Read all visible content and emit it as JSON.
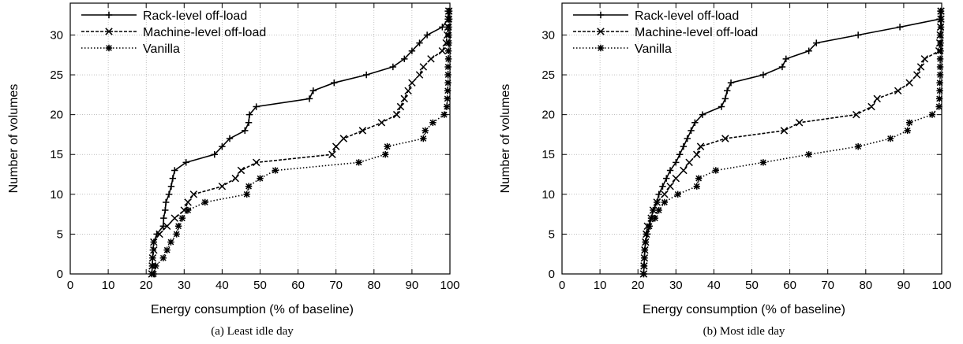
{
  "chart_data": [
    {
      "type": "line",
      "caption": "(a) Least idle day",
      "xlabel": "Energy consumption (% of baseline)",
      "ylabel": "Number of volumes",
      "xlim": [
        0,
        100
      ],
      "ylim": [
        0,
        34
      ],
      "xticks": [
        0,
        10,
        20,
        30,
        40,
        50,
        60,
        70,
        80,
        90,
        100
      ],
      "yticks": [
        0,
        5,
        10,
        15,
        20,
        25,
        30
      ],
      "grid": true,
      "legend_position": "top-left",
      "series": [
        {
          "name": "Rack-level off-load",
          "marker": "plus",
          "dash": "solid",
          "points": [
            [
              21.5,
              0
            ],
            [
              21.6,
              1
            ],
            [
              21.7,
              2
            ],
            [
              21.8,
              3
            ],
            [
              22,
              4
            ],
            [
              22.8,
              5
            ],
            [
              24.5,
              6
            ],
            [
              24.6,
              7
            ],
            [
              25,
              8
            ],
            [
              25.2,
              9
            ],
            [
              26,
              10
            ],
            [
              26.6,
              11
            ],
            [
              27,
              12
            ],
            [
              27.5,
              13
            ],
            [
              30.5,
              14
            ],
            [
              38,
              15
            ],
            [
              40,
              16
            ],
            [
              42,
              17
            ],
            [
              46,
              18
            ],
            [
              47,
              19
            ],
            [
              47.2,
              20
            ],
            [
              49,
              21
            ],
            [
              63,
              22
            ],
            [
              64,
              23
            ],
            [
              69.5,
              24
            ],
            [
              78,
              25
            ],
            [
              85,
              26
            ],
            [
              88,
              27
            ],
            [
              90,
              28
            ],
            [
              92,
              29
            ],
            [
              94,
              30
            ],
            [
              98,
              31
            ],
            [
              99.5,
              32
            ],
            [
              99.5,
              33
            ]
          ]
        },
        {
          "name": "Machine-level off-load",
          "marker": "x",
          "dash": "dashed",
          "points": [
            [
              21.5,
              0
            ],
            [
              21.6,
              1
            ],
            [
              21.7,
              2
            ],
            [
              22,
              3
            ],
            [
              22,
              4
            ],
            [
              23.5,
              5
            ],
            [
              25.5,
              6
            ],
            [
              27.5,
              7
            ],
            [
              30,
              8
            ],
            [
              31,
              9
            ],
            [
              32.5,
              10
            ],
            [
              40,
              11
            ],
            [
              43.5,
              12
            ],
            [
              45,
              13
            ],
            [
              49,
              14
            ],
            [
              69,
              15
            ],
            [
              70,
              16
            ],
            [
              72,
              17
            ],
            [
              77,
              18
            ],
            [
              82,
              19
            ],
            [
              86,
              20
            ],
            [
              87,
              21
            ],
            [
              88,
              22
            ],
            [
              89,
              23
            ],
            [
              90,
              24
            ],
            [
              92,
              25
            ],
            [
              93,
              26
            ],
            [
              95,
              27
            ],
            [
              98,
              28
            ],
            [
              99,
              29
            ],
            [
              99.3,
              30
            ],
            [
              99.5,
              31
            ],
            [
              99.6,
              32
            ],
            [
              99.7,
              33
            ]
          ]
        },
        {
          "name": "Vanilla",
          "marker": "star",
          "dash": "dotted",
          "points": [
            [
              22,
              0
            ],
            [
              22.5,
              1
            ],
            [
              24.5,
              2
            ],
            [
              25.5,
              3
            ],
            [
              26.5,
              4
            ],
            [
              28,
              5
            ],
            [
              28.5,
              6
            ],
            [
              29.5,
              7
            ],
            [
              31,
              8
            ],
            [
              35.5,
              9
            ],
            [
              46.5,
              10
            ],
            [
              47,
              11
            ],
            [
              50,
              12
            ],
            [
              54,
              13
            ],
            [
              76,
              14
            ],
            [
              83,
              15
            ],
            [
              83.5,
              16
            ],
            [
              93,
              17
            ],
            [
              93.5,
              18
            ],
            [
              95.5,
              19
            ],
            [
              98.5,
              20
            ],
            [
              99.2,
              21
            ],
            [
              99.3,
              22
            ],
            [
              99.4,
              23
            ],
            [
              99.5,
              24
            ],
            [
              99.5,
              25
            ],
            [
              99.5,
              26
            ],
            [
              99.6,
              27
            ],
            [
              99.6,
              28
            ],
            [
              99.7,
              29
            ],
            [
              99.7,
              30
            ],
            [
              99.7,
              31
            ],
            [
              99.8,
              32
            ],
            [
              99.8,
              33
            ]
          ]
        }
      ]
    },
    {
      "type": "line",
      "caption": "(b) Most idle day",
      "xlabel": "Energy consumption (% of baseline)",
      "ylabel": "Number of volumes",
      "xlim": [
        0,
        100
      ],
      "ylim": [
        0,
        34
      ],
      "xticks": [
        0,
        10,
        20,
        30,
        40,
        50,
        60,
        70,
        80,
        90,
        100
      ],
      "yticks": [
        0,
        5,
        10,
        15,
        20,
        25,
        30
      ],
      "grid": true,
      "legend_position": "top-left",
      "series": [
        {
          "name": "Rack-level off-load",
          "marker": "plus",
          "dash": "solid",
          "points": [
            [
              21.5,
              0
            ],
            [
              21.6,
              1
            ],
            [
              21.7,
              2
            ],
            [
              21.8,
              3
            ],
            [
              22,
              4
            ],
            [
              22.5,
              5
            ],
            [
              23,
              6
            ],
            [
              23.5,
              7
            ],
            [
              24,
              8
            ],
            [
              25,
              9
            ],
            [
              25.5,
              10
            ],
            [
              26.5,
              11
            ],
            [
              27.5,
              12
            ],
            [
              28.5,
              13
            ],
            [
              30,
              14
            ],
            [
              31,
              15
            ],
            [
              32,
              16
            ],
            [
              33,
              17
            ],
            [
              34,
              18
            ],
            [
              35,
              19
            ],
            [
              37,
              20
            ],
            [
              42,
              21
            ],
            [
              43,
              22
            ],
            [
              43.5,
              23
            ],
            [
              44.5,
              24
            ],
            [
              53,
              25
            ],
            [
              58,
              26
            ],
            [
              59,
              27
            ],
            [
              65,
              28
            ],
            [
              67,
              29
            ],
            [
              78,
              30
            ],
            [
              89,
              31
            ],
            [
              99.5,
              32
            ],
            [
              99.7,
              33
            ]
          ]
        },
        {
          "name": "Machine-level off-load",
          "marker": "x",
          "dash": "dashed",
          "points": [
            [
              21.5,
              0
            ],
            [
              21.6,
              1
            ],
            [
              21.7,
              2
            ],
            [
              21.8,
              3
            ],
            [
              22,
              4
            ],
            [
              22.2,
              5
            ],
            [
              22.5,
              6
            ],
            [
              23.5,
              7
            ],
            [
              24,
              8
            ],
            [
              25,
              9
            ],
            [
              27,
              10
            ],
            [
              28.5,
              11
            ],
            [
              30,
              12
            ],
            [
              32,
              13
            ],
            [
              33.5,
              14
            ],
            [
              35.5,
              15
            ],
            [
              36.5,
              16
            ],
            [
              43,
              17
            ],
            [
              58.5,
              18
            ],
            [
              62.5,
              19
            ],
            [
              77.5,
              20
            ],
            [
              81.5,
              21
            ],
            [
              83,
              22
            ],
            [
              88.5,
              23
            ],
            [
              91.5,
              24
            ],
            [
              93.5,
              25
            ],
            [
              94.5,
              26
            ],
            [
              95.5,
              27
            ],
            [
              99.3,
              28
            ],
            [
              99.5,
              29
            ],
            [
              99.6,
              30
            ],
            [
              99.7,
              31
            ],
            [
              99.8,
              32
            ],
            [
              99.8,
              33
            ]
          ]
        },
        {
          "name": "Vanilla",
          "marker": "star",
          "dash": "dotted",
          "points": [
            [
              21.5,
              0
            ],
            [
              21.6,
              1
            ],
            [
              21.7,
              2
            ],
            [
              21.8,
              3
            ],
            [
              22,
              4
            ],
            [
              22.2,
              5
            ],
            [
              23,
              6
            ],
            [
              24.5,
              7
            ],
            [
              25.5,
              8
            ],
            [
              27,
              9
            ],
            [
              30.5,
              10
            ],
            [
              35.5,
              11
            ],
            [
              36,
              12
            ],
            [
              40.5,
              13
            ],
            [
              53,
              14
            ],
            [
              65,
              15
            ],
            [
              78,
              16
            ],
            [
              86.5,
              17
            ],
            [
              91,
              18
            ],
            [
              91.5,
              19
            ],
            [
              97.5,
              20
            ],
            [
              99.3,
              21
            ],
            [
              99.4,
              22
            ],
            [
              99.5,
              23
            ],
            [
              99.5,
              24
            ],
            [
              99.6,
              25
            ],
            [
              99.6,
              26
            ],
            [
              99.6,
              27
            ],
            [
              99.7,
              28
            ],
            [
              99.7,
              29
            ],
            [
              99.7,
              30
            ],
            [
              99.8,
              31
            ],
            [
              99.8,
              32
            ],
            [
              99.8,
              33
            ]
          ]
        }
      ]
    }
  ]
}
